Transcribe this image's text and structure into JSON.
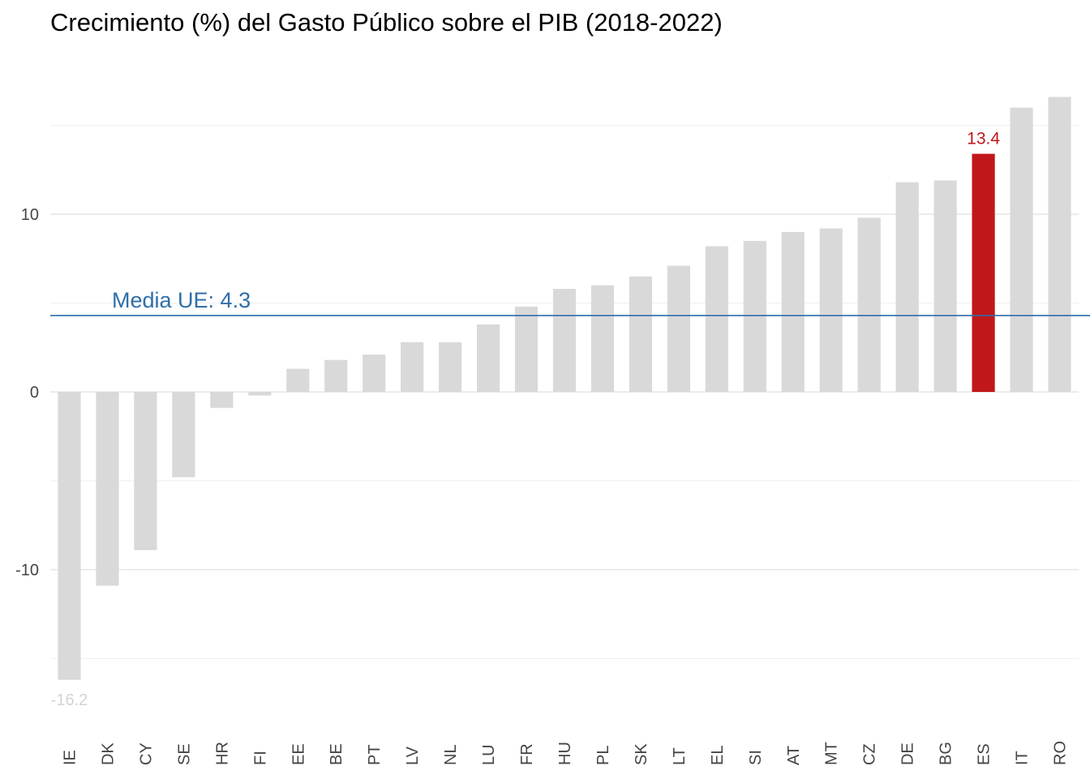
{
  "chart_data": {
    "type": "bar",
    "title": "Crecimiento (%) del Gasto Público sobre el PIB (2018-2022)",
    "xlabel": "",
    "ylabel": "",
    "categories": [
      "IE",
      "DK",
      "CY",
      "SE",
      "HR",
      "FI",
      "EE",
      "BE",
      "PT",
      "LV",
      "NL",
      "LU",
      "FR",
      "HU",
      "PL",
      "SK",
      "LT",
      "EL",
      "SI",
      "AT",
      "MT",
      "CZ",
      "DE",
      "BG",
      "ES",
      "IT",
      "RO"
    ],
    "values": [
      -16.2,
      -10.9,
      -8.9,
      -4.8,
      -0.9,
      -0.2,
      1.3,
      1.8,
      2.1,
      2.8,
      2.8,
      3.8,
      4.8,
      5.8,
      6.0,
      6.5,
      7.1,
      8.2,
      8.5,
      9.0,
      9.2,
      9.8,
      11.8,
      11.9,
      13.4,
      16.0,
      16.6
    ],
    "ylim": [
      -18.5,
      17.6
    ],
    "yticks": [
      -10,
      0,
      10
    ],
    "grid": true,
    "legend": "none",
    "reference_line": {
      "label": "Media UE: 4.3",
      "value": 4.3,
      "color": "#2f6ea9"
    },
    "highlight": {
      "category": "ES",
      "label": "13.4",
      "color": "#c0171a"
    },
    "min_label": {
      "category": "IE",
      "label": "-16.2",
      "color": "#d3d3d3"
    },
    "bar_color": "#d9d9d9"
  }
}
